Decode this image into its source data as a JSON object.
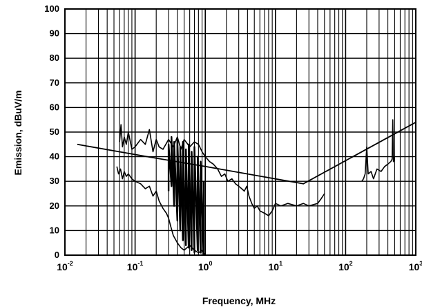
{
  "chart_data": {
    "type": "line",
    "title": "",
    "xlabel": "Frequency, MHz",
    "ylabel": "Emission, dBuV/m",
    "x_scale": "log",
    "xlim": [
      0.01,
      1000
    ],
    "ylim": [
      0,
      100
    ],
    "grid": true,
    "x_ticks": [
      {
        "base": "10",
        "exp": "-2"
      },
      {
        "base": "10",
        "exp": "-1"
      },
      {
        "base": "10",
        "exp": "0"
      },
      {
        "base": "10",
        "exp": "1"
      },
      {
        "base": "10",
        "exp": "2"
      },
      {
        "base": "10",
        "exp": "3"
      }
    ],
    "y_ticks": [
      "0",
      "10",
      "20",
      "30",
      "40",
      "50",
      "60",
      "70",
      "80",
      "90",
      "100"
    ],
    "series": [
      {
        "role": "limit",
        "points": [
          [
            0.015,
            45
          ],
          [
            0.15,
            40
          ],
          [
            1.0,
            36
          ],
          [
            25,
            29
          ],
          [
            1000,
            54
          ]
        ]
      },
      {
        "role": "emission-upper",
        "points": [
          [
            0.06,
            46
          ],
          [
            0.063,
            53
          ],
          [
            0.066,
            44
          ],
          [
            0.07,
            48
          ],
          [
            0.075,
            45
          ],
          [
            0.08,
            50
          ],
          [
            0.09,
            43
          ],
          [
            0.1,
            44
          ],
          [
            0.12,
            47
          ],
          [
            0.14,
            45
          ],
          [
            0.16,
            51
          ],
          [
            0.18,
            42
          ],
          [
            0.2,
            47
          ],
          [
            0.22,
            44
          ],
          [
            0.25,
            43
          ],
          [
            0.3,
            47
          ],
          [
            0.35,
            44
          ],
          [
            0.4,
            48
          ],
          [
            0.45,
            43
          ],
          [
            0.5,
            47
          ],
          [
            0.6,
            44
          ],
          [
            0.7,
            46
          ],
          [
            0.8,
            45
          ],
          [
            0.9,
            42
          ],
          [
            1.0,
            40
          ],
          [
            1.15,
            38
          ],
          [
            1.3,
            37
          ],
          [
            1.5,
            35
          ],
          [
            1.7,
            32
          ],
          [
            1.9,
            33
          ],
          [
            2.1,
            30
          ],
          [
            2.4,
            31
          ],
          [
            2.7,
            29
          ],
          [
            3.0,
            28
          ],
          [
            3.3,
            27
          ],
          [
            3.6,
            26
          ],
          [
            3.9,
            28
          ],
          [
            4.2,
            24
          ],
          [
            4.6,
            21
          ],
          [
            5.0,
            19
          ],
          [
            5.5,
            20
          ],
          [
            6.0,
            18
          ],
          [
            7.0,
            17
          ],
          [
            8.0,
            16
          ],
          [
            9.0,
            18
          ],
          [
            10,
            21
          ],
          [
            12,
            20
          ],
          [
            15,
            21
          ],
          [
            20,
            20
          ],
          [
            25,
            21
          ],
          [
            30,
            20
          ],
          [
            40,
            21
          ],
          [
            45,
            23
          ],
          [
            50,
            25
          ]
        ]
      },
      {
        "role": "emission-lower",
        "points": [
          [
            0.055,
            36
          ],
          [
            0.058,
            33
          ],
          [
            0.062,
            35
          ],
          [
            0.066,
            31
          ],
          [
            0.07,
            34
          ],
          [
            0.075,
            32
          ],
          [
            0.08,
            33
          ],
          [
            0.09,
            31
          ],
          [
            0.1,
            30
          ],
          [
            0.12,
            29
          ],
          [
            0.14,
            27
          ],
          [
            0.16,
            28
          ],
          [
            0.18,
            24
          ],
          [
            0.2,
            26
          ],
          [
            0.22,
            22
          ],
          [
            0.25,
            19
          ],
          [
            0.28,
            17
          ],
          [
            0.3,
            15
          ],
          [
            0.32,
            12
          ],
          [
            0.35,
            8
          ],
          [
            0.4,
            5
          ],
          [
            0.45,
            3
          ],
          [
            0.5,
            2
          ],
          [
            0.6,
            4
          ],
          [
            0.7,
            2
          ],
          [
            0.8,
            1
          ],
          [
            0.9,
            2
          ],
          [
            1.0,
            0
          ]
        ]
      },
      {
        "role": "emission-dense",
        "points": [
          [
            0.3,
            26
          ],
          [
            0.3,
            45
          ],
          [
            0.33,
            28
          ],
          [
            0.33,
            48
          ],
          [
            0.36,
            20
          ],
          [
            0.36,
            46
          ],
          [
            0.4,
            14
          ],
          [
            0.4,
            47
          ],
          [
            0.44,
            10
          ],
          [
            0.44,
            44
          ],
          [
            0.48,
            6
          ],
          [
            0.48,
            46
          ],
          [
            0.53,
            4
          ],
          [
            0.53,
            43
          ],
          [
            0.58,
            3
          ],
          [
            0.58,
            45
          ],
          [
            0.64,
            2
          ],
          [
            0.64,
            42
          ],
          [
            0.7,
            1
          ],
          [
            0.7,
            44
          ],
          [
            0.78,
            2
          ],
          [
            0.78,
            40
          ],
          [
            0.86,
            1
          ],
          [
            0.86,
            38
          ],
          [
            0.95,
            0
          ],
          [
            0.95,
            30
          ]
        ]
      },
      {
        "role": "emission-vhf",
        "points": [
          [
            170,
            30
          ],
          [
            180,
            31
          ],
          [
            190,
            33
          ],
          [
            200,
            44
          ],
          [
            210,
            33
          ],
          [
            230,
            34
          ],
          [
            250,
            31
          ],
          [
            280,
            35
          ],
          [
            320,
            34
          ],
          [
            360,
            36
          ],
          [
            400,
            37
          ],
          [
            440,
            38
          ],
          [
            460,
            39
          ],
          [
            470,
            55
          ],
          [
            480,
            38
          ],
          [
            500,
            40
          ]
        ]
      }
    ]
  }
}
